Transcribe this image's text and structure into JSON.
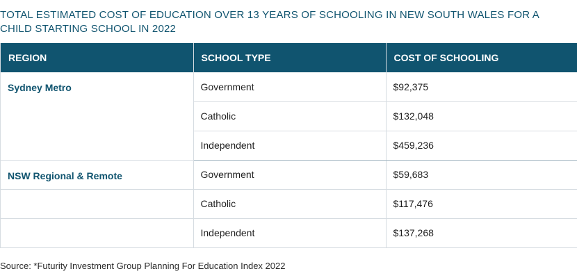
{
  "title": "TOTAL ESTIMATED COST OF EDUCATION OVER 13 YEARS OF SCHOOLING IN NEW SOUTH WALES FOR A CHILD STARTING SCHOOL IN 2022",
  "table": {
    "headers": {
      "region": "REGION",
      "school_type": "SCHOOL TYPE",
      "cost": "COST OF SCHOOLING"
    },
    "rows": [
      {
        "region": "Sydney Metro",
        "school_type": "Government",
        "cost": "$92,375"
      },
      {
        "region": "",
        "school_type": "Catholic",
        "cost": "$132,048"
      },
      {
        "region": "",
        "school_type": "Independent",
        "cost": "$459,236"
      },
      {
        "region": "NSW Regional & Remote",
        "school_type": "Government",
        "cost": "$59,683"
      },
      {
        "region": "",
        "school_type": "Catholic",
        "cost": "$117,476"
      },
      {
        "region": "",
        "school_type": "Independent",
        "cost": "$137,268"
      }
    ]
  },
  "source": "Source: *Futurity Investment Group Planning For Education Index 2022"
}
